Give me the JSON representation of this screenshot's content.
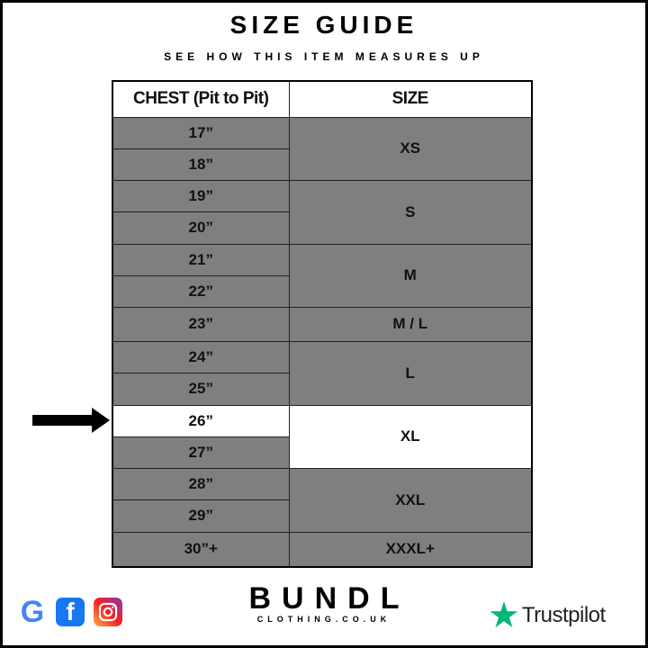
{
  "title": "SIZE GUIDE",
  "subtitle": "SEE HOW THIS ITEM MEASURES UP",
  "table": {
    "headers": [
      "CHEST (Pit to Pit)",
      "SIZE"
    ],
    "chest": [
      "17”",
      "18”",
      "19”",
      "20”",
      "21”",
      "22”",
      "23”",
      "24”",
      "25”",
      "26”",
      "27”",
      "28”",
      "29”",
      "30”+"
    ],
    "sizes": [
      "XS",
      "S",
      "M",
      "M / L",
      "L",
      "XL",
      "XXL",
      "XXXL+"
    ],
    "highlighted_chest": "26”",
    "highlighted_size": "XL"
  },
  "colors": {
    "cell": "#7f7f7f",
    "highlight": "#ffffff",
    "trustpilot": "#00b67a"
  },
  "footer": {
    "social_icons": [
      "google-icon",
      "facebook-icon",
      "instagram-icon"
    ],
    "brand": "BUNDL",
    "brand_sub": "CLOTHING.CO.UK",
    "trustpilot": "Trustpilot"
  }
}
